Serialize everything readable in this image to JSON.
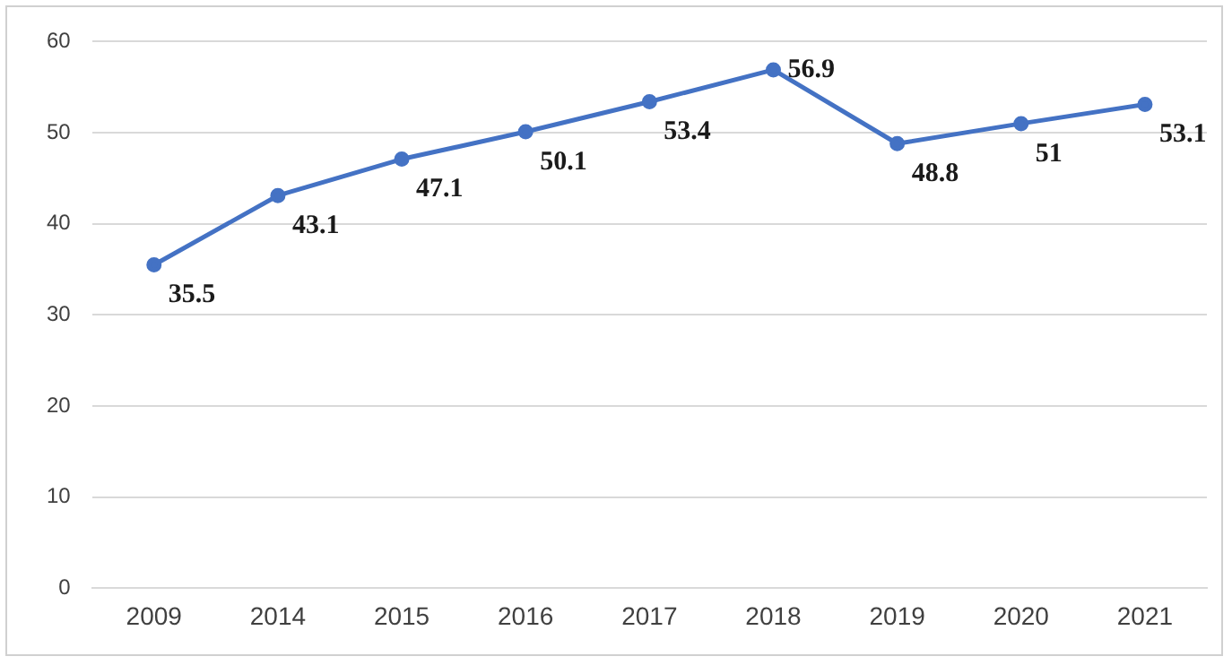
{
  "chart_data": {
    "type": "line",
    "categories": [
      "2009",
      "2014",
      "2015",
      "2016",
      "2017",
      "2018",
      "2019",
      "2020",
      "2021"
    ],
    "series": [
      {
        "color": "#4472c4",
        "values": [
          35.5,
          43.1,
          47.1,
          50.1,
          53.4,
          56.9,
          48.8,
          51,
          53.1
        ]
      }
    ],
    "ylim": [
      0,
      60
    ],
    "yticks": [
      0,
      10,
      20,
      30,
      40,
      50,
      60
    ],
    "grid": "y",
    "legend": false,
    "marker": "circle",
    "line_style": "solid",
    "data_labels": true
  }
}
